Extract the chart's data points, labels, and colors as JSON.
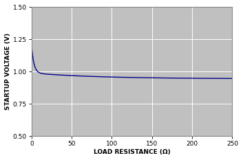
{
  "title": "",
  "xlabel": "LOAD RESISTANCE (Ω)",
  "ylabel": "STARTUP VOLTAGE (V)",
  "xlim": [
    0,
    250
  ],
  "ylim": [
    0.5,
    1.5
  ],
  "yticks": [
    0.5,
    0.75,
    1.0,
    1.25,
    1.5
  ],
  "xticks": [
    0,
    50,
    100,
    150,
    200,
    250
  ],
  "line_color": "#00008B",
  "plot_bg_color": "#C0C0C0",
  "fig_bg_color": "#FFFFFF",
  "grid_color": "#FFFFFF",
  "border_color": "#888888",
  "curve_start_y": 1.165,
  "curve_asymptote": 0.945
}
